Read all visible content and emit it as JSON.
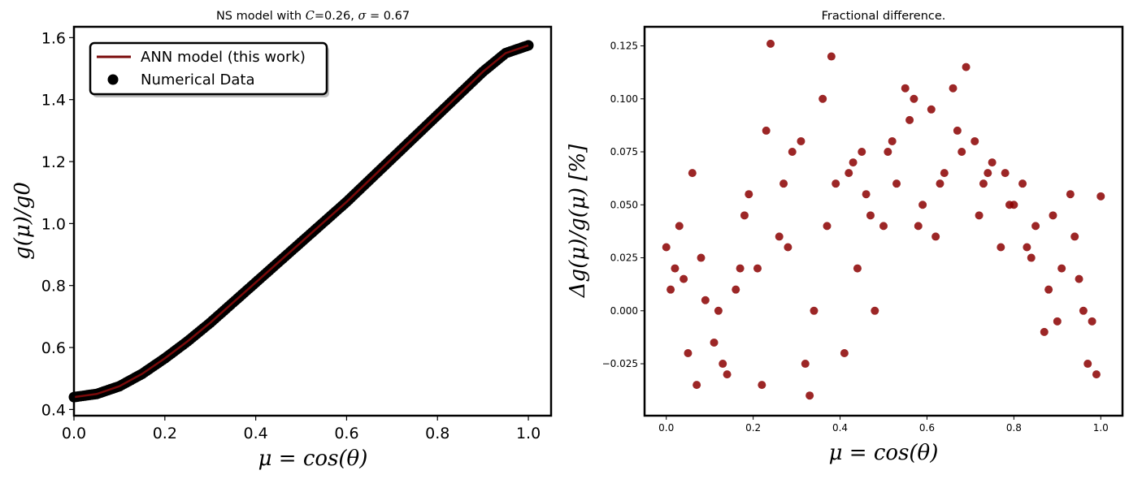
{
  "colors": {
    "line": "#7a0a0a",
    "points_left": "#000000",
    "points_right": "#8b0000"
  },
  "chart_data": [
    {
      "type": "line",
      "title": "NS model with C=0.26, σ = 0.67",
      "title_parts": {
        "prefix": "NS model with ",
        "c_symbol": "C",
        "c_value": "=0.26, ",
        "sigma_symbol": "σ",
        "sigma_value": " = 0.67"
      },
      "xlabel": "μ = cos(θ)",
      "ylabel": "g(μ)/g0",
      "xlim": [
        0.0,
        1.05
      ],
      "ylim": [
        0.38,
        1.635
      ],
      "xticks": [
        "0.0",
        "0.2",
        "0.4",
        "0.6",
        "0.8",
        "1.0"
      ],
      "yticks": [
        "0.4",
        "0.6",
        "0.8",
        "1.0",
        "1.2",
        "1.4",
        "1.6"
      ],
      "legend": {
        "placement": "top-left",
        "entries": [
          "ANN model (this work)",
          "Numerical Data"
        ]
      },
      "series": [
        {
          "name": "ANN model (this work)",
          "x": [
            0.0,
            0.05,
            0.1,
            0.15,
            0.2,
            0.25,
            0.3,
            0.35,
            0.4,
            0.45,
            0.5,
            0.55,
            0.6,
            0.65,
            0.7,
            0.75,
            0.8,
            0.85,
            0.9,
            0.95,
            1.0
          ],
          "y": [
            0.44,
            0.45,
            0.475,
            0.515,
            0.565,
            0.62,
            0.68,
            0.745,
            0.81,
            0.875,
            0.94,
            1.005,
            1.07,
            1.14,
            1.21,
            1.28,
            1.35,
            1.42,
            1.49,
            1.55,
            1.575
          ]
        },
        {
          "name": "Numerical Data",
          "x": [
            0.0,
            0.05,
            0.1,
            0.15,
            0.2,
            0.25,
            0.3,
            0.35,
            0.4,
            0.45,
            0.5,
            0.55,
            0.6,
            0.65,
            0.7,
            0.75,
            0.8,
            0.85,
            0.9,
            0.95,
            1.0
          ],
          "y": [
            0.44,
            0.45,
            0.475,
            0.515,
            0.565,
            0.62,
            0.68,
            0.745,
            0.81,
            0.875,
            0.94,
            1.005,
            1.07,
            1.14,
            1.21,
            1.28,
            1.35,
            1.42,
            1.49,
            1.55,
            1.575
          ]
        }
      ]
    },
    {
      "type": "scatter",
      "title": "Fractional difference.",
      "xlabel": "μ = cos(θ)",
      "ylabel": "Δg(μ)/g(μ) [%]",
      "xlim": [
        -0.05,
        1.05
      ],
      "ylim": [
        -0.0495,
        0.134
      ],
      "xticks": [
        "0.0",
        "0.2",
        "0.4",
        "0.6",
        "0.8",
        "1.0"
      ],
      "yticks": [
        "−0.025",
        "0.000",
        "0.025",
        "0.050",
        "0.075",
        "0.100",
        "0.125"
      ],
      "series": [
        {
          "x": [
            0.0,
            0.02,
            0.05,
            0.09,
            0.14,
            0.19,
            0.24,
            0.29,
            0.33,
            0.38,
            0.43,
            0.47,
            0.53,
            0.57,
            0.61,
            0.66,
            0.71,
            0.75,
            0.8,
            0.85,
            0.89,
            0.93,
            0.97,
            1.0,
            0.01,
            0.04,
            0.07,
            0.12,
            0.17,
            0.22,
            0.27,
            0.31,
            0.36,
            0.41,
            0.45,
            0.5,
            0.55,
            0.59,
            0.64,
            0.69,
            0.73,
            0.78,
            0.83,
            0.87,
            0.91,
            0.96,
            0.99,
            0.03,
            0.08,
            0.13,
            0.18,
            0.23,
            0.28,
            0.34,
            0.39,
            0.44,
            0.48,
            0.52,
            0.58,
            0.63,
            0.68,
            0.72,
            0.77,
            0.82,
            0.88,
            0.94,
            0.98,
            0.06,
            0.11,
            0.16,
            0.21,
            0.26,
            0.32,
            0.37,
            0.42,
            0.46,
            0.51,
            0.56,
            0.62,
            0.67,
            0.74,
            0.79,
            0.84,
            0.9,
            0.95
          ],
          "y": [
            0.03,
            0.02,
            -0.02,
            0.005,
            -0.03,
            0.055,
            0.126,
            0.075,
            -0.04,
            0.12,
            0.07,
            0.045,
            0.06,
            0.1,
            0.095,
            0.105,
            0.08,
            0.07,
            0.05,
            0.04,
            0.045,
            0.055,
            -0.025,
            0.054,
            0.01,
            0.015,
            -0.035,
            0.0,
            0.02,
            -0.035,
            0.06,
            0.08,
            0.1,
            -0.02,
            0.075,
            0.04,
            0.105,
            0.05,
            0.065,
            0.115,
            0.06,
            0.065,
            0.03,
            -0.01,
            0.02,
            0.0,
            -0.03,
            0.04,
            0.025,
            -0.025,
            0.045,
            0.085,
            0.03,
            0.0,
            0.06,
            0.02,
            0.0,
            0.08,
            0.04,
            0.06,
            0.075,
            0.045,
            0.03,
            0.06,
            0.01,
            0.035,
            -0.005,
            0.065,
            -0.015,
            0.01,
            0.02,
            0.035,
            -0.025,
            0.04,
            0.065,
            0.055,
            0.075,
            0.09,
            0.035,
            0.085,
            0.065,
            0.05,
            0.025,
            -0.005,
            0.015
          ]
        }
      ]
    }
  ]
}
